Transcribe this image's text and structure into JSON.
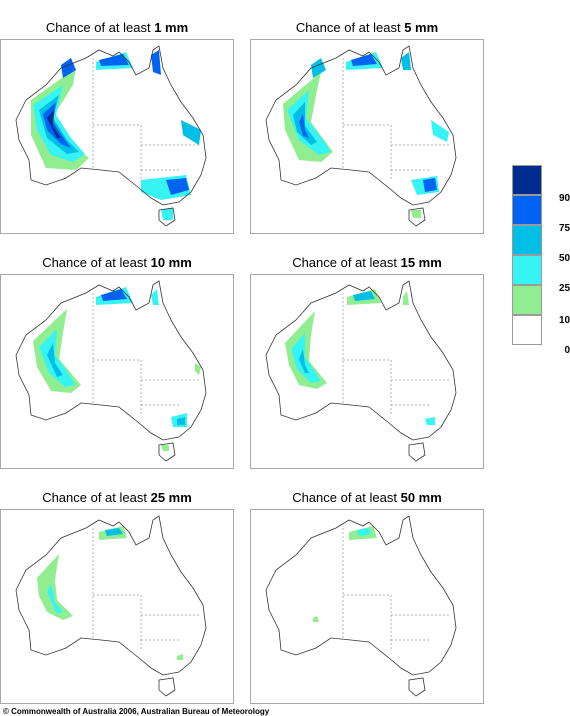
{
  "panels": [
    {
      "prefix": "Chance of at least ",
      "amount": "1 mm"
    },
    {
      "prefix": "Chance of at least ",
      "amount": "5 mm"
    },
    {
      "prefix": "Chance of at least ",
      "amount": "10 mm"
    },
    {
      "prefix": "Chance of at least ",
      "amount": "15 mm"
    },
    {
      "prefix": "Chance of at least ",
      "amount": "25 mm"
    },
    {
      "prefix": "Chance of at least ",
      "amount": "50 mm"
    }
  ],
  "legend": {
    "labels": [
      "90%",
      "75%",
      "50%",
      "25%",
      "10%",
      "0%"
    ],
    "colors": [
      "#002c8f",
      "#0063f2",
      "#00bfe6",
      "#36f4f4",
      "#90ee90",
      "#ffffff"
    ]
  },
  "copyright": "© Commonwealth of Australia 2006, Australian Bureau of Meteorology"
}
